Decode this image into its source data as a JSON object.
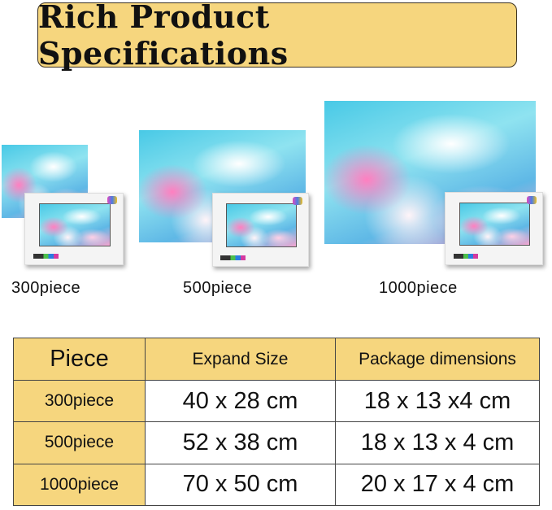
{
  "title": "Rich Product Specifications",
  "products": [
    {
      "label": "300piece"
    },
    {
      "label": "500piece"
    },
    {
      "label": "1000piece"
    }
  ],
  "table": {
    "headers": [
      "Piece",
      "Expand Size",
      "Package dimensions"
    ],
    "rows": [
      {
        "piece": "300piece",
        "expand": "40 x 28 cm",
        "package": "18 x 13 x4 cm"
      },
      {
        "piece": "500piece",
        "expand": "52 x 38 cm",
        "package": "18 x 13 x 4 cm"
      },
      {
        "piece": "1000piece",
        "expand": "70 x 50 cm",
        "package": "20 x 17 x 4 cm"
      }
    ]
  },
  "colors": {
    "accent": "#f6d67e",
    "border": "#444444"
  }
}
